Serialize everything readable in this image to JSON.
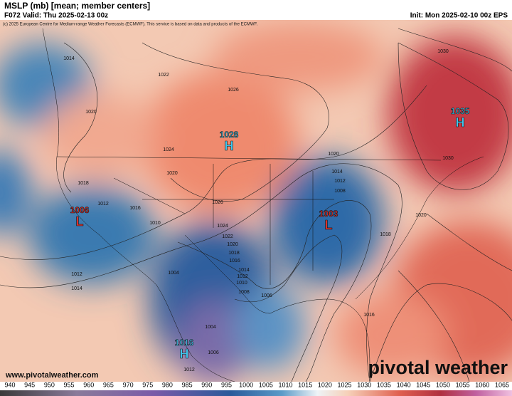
{
  "header": {
    "title": "MSLP (mb) [mean; member centers]",
    "valid": "F072 Valid: Thu 2025-02-13 00z",
    "init": "Init: Mon 2025-02-10 00z EPS",
    "copyright": "(c) 2025 European Centre for Medium-range Weather Forecasts (ECMWF). This service is based on data and products of the ECMWF."
  },
  "centers": [
    {
      "value": "1006",
      "letter": "L"
    },
    {
      "value": "1003",
      "letter": "L"
    },
    {
      "value": "1028",
      "letter": "H"
    },
    {
      "value": "1035",
      "letter": "H"
    },
    {
      "value": "1016",
      "letter": "H"
    }
  ],
  "isobars": [
    "1014",
    "1022",
    "1026",
    "1020",
    "1024",
    "1020",
    "1018",
    "1016",
    "1012",
    "1010",
    "1024",
    "1022",
    "1020",
    "1018",
    "1016",
    "1014",
    "1012",
    "1010",
    "1008",
    "1006",
    "1004",
    "1012",
    "1014",
    "1026",
    "1020",
    "1014",
    "1012",
    "1008",
    "1018",
    "1030",
    "1030",
    "1020",
    "1016",
    "1004",
    "1006",
    "1012"
  ],
  "colorbar": [
    "940",
    "945",
    "950",
    "955",
    "960",
    "965",
    "970",
    "975",
    "980",
    "985",
    "990",
    "995",
    "1000",
    "1005",
    "1010",
    "1015",
    "1020",
    "1025",
    "1030",
    "1035",
    "1040",
    "1045",
    "1050",
    "1055",
    "1060",
    "1065"
  ],
  "footer": {
    "url": "www.pivotalweather.com",
    "brand": "pivotal weather"
  }
}
